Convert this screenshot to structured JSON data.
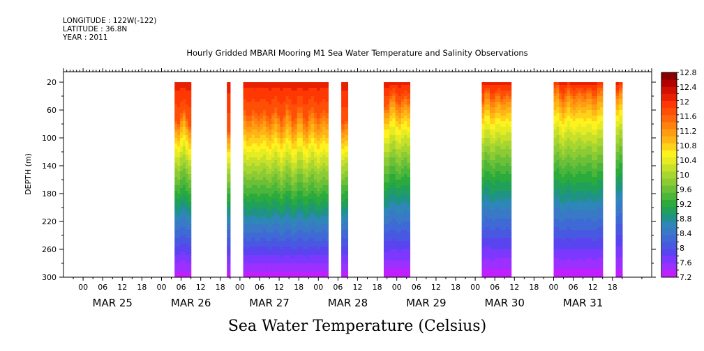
{
  "header": {
    "longitude": "LONGITUDE : 122W(-122)",
    "latitude": "LATITUDE : 36.8N",
    "year": "YEAR : 2011"
  },
  "chart_data": {
    "type": "heatmap",
    "title": "Hourly Gridded MBARI Mooring M1 Sea Water Temperature and Salinity Observations",
    "colorbar_title": "Sea Water Temperature (Celsius)",
    "ylabel": "DEPTH (m)",
    "y_range": [
      300,
      5
    ],
    "y_ticks": [
      20,
      60,
      100,
      140,
      180,
      220,
      260,
      300
    ],
    "x_range_hours": [
      -6,
      174
    ],
    "x_hour_ticks": [
      "00",
      "06",
      "12",
      "18",
      "00",
      "06",
      "12",
      "18",
      "00",
      "06",
      "12",
      "18",
      "00",
      "06",
      "12",
      "18",
      "00",
      "06",
      "12",
      "18",
      "00",
      "06",
      "12",
      "18",
      "00",
      "06",
      "12",
      "18"
    ],
    "day_labels": [
      "MAR 25",
      "MAR 26",
      "MAR 27",
      "MAR 28",
      "MAR 29",
      "MAR 30",
      "MAR 31"
    ],
    "colorbar_levels": [
      7.2,
      7.4,
      7.6,
      7.8,
      8.0,
      8.2,
      8.4,
      8.6,
      8.8,
      9.0,
      9.2,
      9.4,
      9.6,
      9.8,
      10.0,
      10.2,
      10.4,
      10.6,
      10.8,
      11.0,
      11.2,
      11.4,
      11.6,
      11.8,
      12.0,
      12.2,
      12.4,
      12.6,
      12.8
    ],
    "colorbar_labels": [
      "12.8",
      "12.4",
      "12",
      "11.6",
      "11.2",
      "10.8",
      "10.4",
      "10",
      "9.6",
      "9.2",
      "8.8",
      "8.4",
      "8",
      "7.6",
      "7.2"
    ],
    "colors": [
      "#c020ff",
      "#9b30ff",
      "#7d38ff",
      "#5a44f0",
      "#4858e0",
      "#3f6ad6",
      "#3979c6",
      "#2f86b8",
      "#1f9484",
      "#20a05a",
      "#2bab3c",
      "#4cb63a",
      "#6cc038",
      "#8ccb34",
      "#a8d630",
      "#c8e02a",
      "#e6ec24",
      "#fff21e",
      "#ffd21a",
      "#ffb516",
      "#ff9c12",
      "#ff820e",
      "#ff680a",
      "#ff4e06",
      "#ff3803",
      "#e82000",
      "#d21000",
      "#b00000",
      "#8a0000"
    ],
    "blocks": [
      {
        "start_hour": 28,
        "end_hour": 33,
        "mld": 70,
        "thermo": 0.8
      },
      {
        "start_hour": 44,
        "end_hour": 45,
        "mld": 85,
        "thermo": 0.75
      },
      {
        "start_hour": 49,
        "end_hour": 75,
        "mld": 65,
        "thermo": 0.9
      },
      {
        "start_hour": 79,
        "end_hour": 81,
        "mld": 78,
        "thermo": 0.8
      },
      {
        "start_hour": 92,
        "end_hour": 100,
        "mld": 45,
        "thermo": 0.78
      },
      {
        "start_hour": 122,
        "end_hour": 131,
        "mld": 40,
        "thermo": 0.75
      },
      {
        "start_hour": 144,
        "end_hour": 159,
        "mld": 35,
        "thermo": 0.78
      },
      {
        "start_hour": 163,
        "end_hour": 165,
        "mld": 35,
        "thermo": 0.7
      }
    ]
  }
}
